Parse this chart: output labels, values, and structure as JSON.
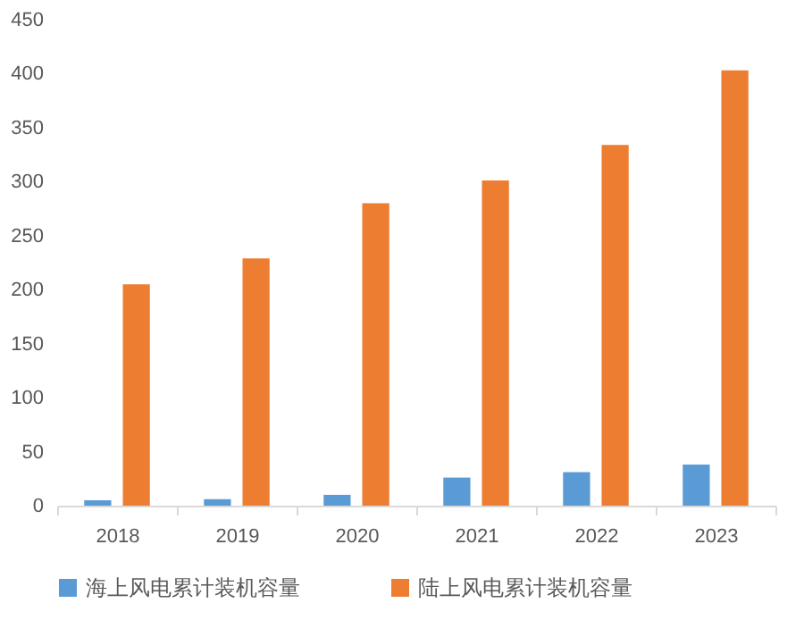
{
  "chart_data": {
    "type": "bar",
    "categories": [
      "2018",
      "2019",
      "2020",
      "2021",
      "2022",
      "2023"
    ],
    "series": [
      {
        "name": "海上风电累计装机容量",
        "color": "#5b9bd5",
        "values": [
          5,
          6,
          10,
          26,
          31,
          38
        ]
      },
      {
        "name": "陆上风电累计装机容量",
        "color": "#ed7d31",
        "values": [
          205,
          229,
          280,
          301,
          334,
          403
        ]
      }
    ],
    "ylim": [
      0,
      450
    ],
    "yticks": [
      0,
      50,
      100,
      150,
      200,
      250,
      300,
      350,
      400,
      450
    ],
    "grid": false,
    "legend": "bottom"
  }
}
